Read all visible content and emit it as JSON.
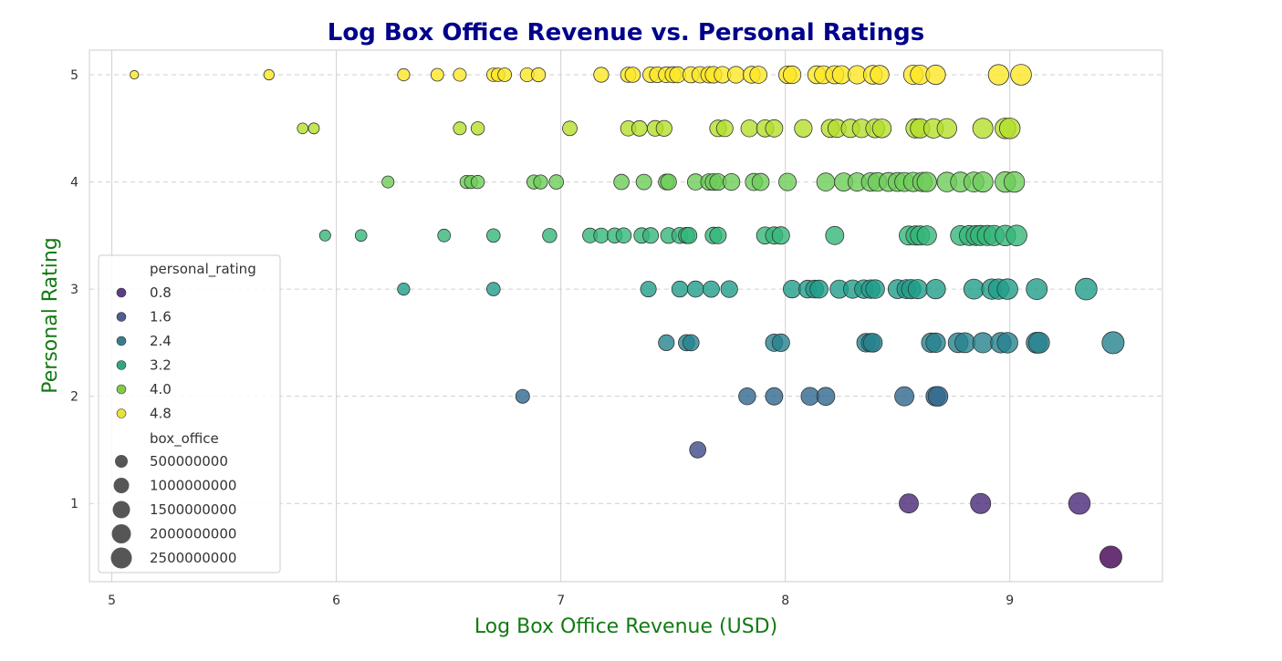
{
  "chart_data": {
    "type": "scatter",
    "title": "Log Box Office Revenue vs. Personal Ratings",
    "xlabel": "Log Box Office Revenue (USD)",
    "ylabel": "Personal Rating",
    "xlim": [
      4.9,
      9.68
    ],
    "ylim": [
      0.27,
      5.23
    ],
    "xticks": [
      5,
      6,
      7,
      8,
      9
    ],
    "yticks": [
      1,
      2,
      3,
      4,
      5
    ],
    "grid": true,
    "legend_position": "lower-left",
    "colormap": "viridis",
    "colors": {
      "title": "#00008b",
      "axis_label": "#137a13",
      "grid": "#d0d0d0",
      "marker_edge": "#333333",
      "frame": "#cccccc"
    },
    "hue_legend": {
      "title": "personal_rating",
      "entries": [
        {
          "label": "0.8",
          "color": "#5d3b87"
        },
        {
          "label": "1.6",
          "color": "#4f5d8f"
        },
        {
          "label": "2.4",
          "color": "#3a7c8d"
        },
        {
          "label": "3.2",
          "color": "#33a583"
        },
        {
          "label": "4.0",
          "color": "#84c94b"
        },
        {
          "label": "4.8",
          "color": "#e9e13c"
        }
      ]
    },
    "size_legend": {
      "title": "box_office",
      "entries": [
        {
          "label": "500000000",
          "value": 500000000
        },
        {
          "label": "1000000000",
          "value": 1000000000
        },
        {
          "label": "1500000000",
          "value": 1500000000
        },
        {
          "label": "2000000000",
          "value": 2000000000
        },
        {
          "label": "2500000000",
          "value": 2500000000
        }
      ]
    },
    "series": [
      {
        "rating": 5.0,
        "x": [
          5.1,
          5.7,
          6.3,
          6.45,
          6.55,
          6.7,
          6.72,
          6.75,
          6.85,
          6.9,
          7.18,
          7.3,
          7.32,
          7.4,
          7.43,
          7.47,
          7.5,
          7.52,
          7.58,
          7.62,
          7.66,
          7.68,
          7.72,
          7.78,
          7.85,
          7.88,
          8.01,
          8.03,
          8.14,
          8.17,
          8.22,
          8.25,
          8.32,
          8.39,
          8.42,
          8.57,
          8.6,
          8.67,
          8.95,
          9.05
        ]
      },
      {
        "rating": 4.5,
        "x": [
          5.85,
          5.9,
          6.55,
          6.63,
          7.04,
          7.3,
          7.35,
          7.42,
          7.46,
          7.7,
          7.73,
          7.84,
          7.91,
          7.95,
          8.08,
          8.2,
          8.23,
          8.29,
          8.34,
          8.4,
          8.43,
          8.58,
          8.6,
          8.66,
          8.72,
          8.88,
          8.98,
          9.0
        ]
      },
      {
        "rating": 4.0,
        "x": [
          6.23,
          6.58,
          6.6,
          6.63,
          6.88,
          6.91,
          6.98,
          7.27,
          7.37,
          7.47,
          7.48,
          7.6,
          7.66,
          7.68,
          7.7,
          7.76,
          7.86,
          7.89,
          8.01,
          8.18,
          8.26,
          8.32,
          8.38,
          8.41,
          8.46,
          8.5,
          8.53,
          8.57,
          8.61,
          8.63,
          8.72,
          8.78,
          8.84,
          8.88,
          8.98,
          9.02
        ]
      },
      {
        "rating": 3.5,
        "x": [
          5.95,
          6.11,
          6.48,
          6.7,
          6.95,
          7.13,
          7.18,
          7.24,
          7.28,
          7.36,
          7.4,
          7.48,
          7.53,
          7.56,
          7.57,
          7.68,
          7.7,
          7.91,
          7.95,
          7.98,
          8.22,
          8.55,
          8.58,
          8.6,
          8.63,
          8.78,
          8.82,
          8.85,
          8.87,
          8.9,
          8.93,
          8.98,
          9.03
        ]
      },
      {
        "rating": 3.0,
        "x": [
          6.3,
          6.7,
          7.39,
          7.53,
          7.6,
          7.67,
          7.75,
          8.03,
          8.1,
          8.13,
          8.15,
          8.24,
          8.3,
          8.35,
          8.38,
          8.4,
          8.5,
          8.54,
          8.56,
          8.59,
          8.67,
          8.84,
          8.92,
          8.95,
          8.99,
          9.12,
          9.34
        ]
      },
      {
        "rating": 2.5,
        "x": [
          7.47,
          7.56,
          7.58,
          7.95,
          7.98,
          8.36,
          8.38,
          8.39,
          8.65,
          8.67,
          8.77,
          8.8,
          8.88,
          8.96,
          8.99,
          9.12,
          9.13,
          9.46
        ]
      },
      {
        "rating": 2.0,
        "x": [
          6.83,
          7.83,
          7.95,
          8.11,
          8.18,
          8.53,
          8.67,
          8.68
        ]
      },
      {
        "rating": 1.5,
        "x": [
          7.61
        ]
      },
      {
        "rating": 1.0,
        "x": [
          8.55,
          8.87,
          9.31
        ]
      },
      {
        "rating": 0.5,
        "x": [
          9.45
        ]
      }
    ]
  }
}
